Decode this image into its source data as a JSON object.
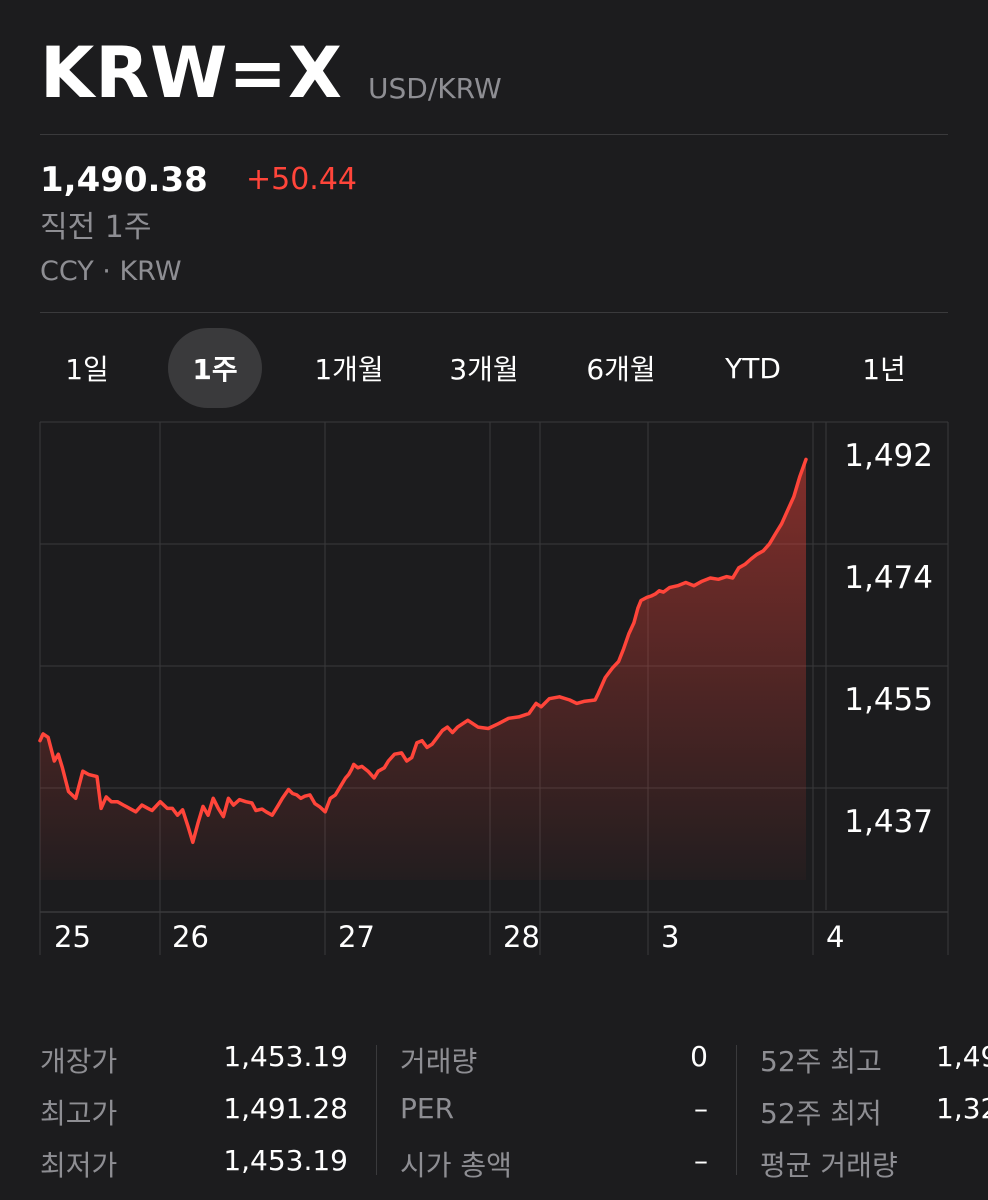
{
  "header": {
    "symbol": "KRW=X",
    "pair": "USD/KRW"
  },
  "quote": {
    "price": "1,490.38",
    "change": "+50.44",
    "period": "직전 1주",
    "exchange": "CCY · KRW"
  },
  "tabs": [
    {
      "label": "1일",
      "active": false
    },
    {
      "label": "1주",
      "active": true
    },
    {
      "label": "1개월",
      "active": false
    },
    {
      "label": "3개월",
      "active": false
    },
    {
      "label": "6개월",
      "active": false
    },
    {
      "label": "YTD",
      "active": false
    },
    {
      "label": "1년",
      "active": false
    }
  ],
  "colors": {
    "line": "#ff453a",
    "grid": "#3a3a3c",
    "background": "#1c1c1e"
  },
  "chart_data": {
    "type": "area",
    "x_ticks": [
      {
        "label": "25",
        "t": 0
      },
      {
        "label": "26",
        "t": 1
      },
      {
        "label": "27",
        "t": 2
      },
      {
        "label": "28",
        "t": 3
      },
      {
        "label": "3",
        "t": 4
      },
      {
        "label": "4",
        "t": 5
      }
    ],
    "y_ticks": [
      1492,
      1474,
      1455,
      1437
    ],
    "y_labels": [
      "1,492",
      "1,474",
      "1,455",
      "1,437"
    ],
    "ylim": [
      1430,
      1495
    ],
    "x": [
      0,
      0.03,
      0.08,
      0.14,
      0.18,
      0.22,
      0.28,
      0.35,
      0.42,
      0.48,
      0.56,
      0.6,
      0.65,
      0.7,
      0.76,
      0.82,
      0.88,
      0.94,
      1,
      1.06,
      1.1,
      1.18,
      1.25,
      1.3,
      1.35,
      1.4,
      1.45,
      1.5,
      1.55,
      1.6,
      1.65,
      1.7,
      1.75,
      1.8,
      1.85,
      1.9,
      1.96,
      2.02,
      2.08,
      2.12,
      2.18,
      2.22,
      2.28,
      2.34,
      2.38,
      2.44,
      2.48,
      2.52,
      2.56,
      2.6,
      2.65,
      2.7,
      2.75,
      2.8,
      2.85,
      2.9,
      2.96,
      3,
      3.03,
      3.06,
      3.08,
      3.12,
      3.16,
      3.22,
      3.28,
      3.32,
      3.38,
      3.42,
      3.48,
      3.55,
      3.6,
      3.65,
      3.7,
      3.75,
      3.8,
      3.85,
      3.9,
      3.95,
      4,
      4.05,
      4.1,
      4.15,
      4.2,
      4.3,
      4.4,
      4.5,
      4.6,
      4.7,
      4.8,
      4.87,
      4.92,
      5,
      5.1,
      5.2,
      5.27,
      5.34,
      5.45,
      5.48,
      5.55,
      5.62,
      5.68,
      5.73,
      5.78,
      5.83,
      5.87,
      5.9,
      5.96,
      6,
      6.04,
      6.08,
      6.12,
      6.18,
      6.26,
      6.34,
      6.42,
      6.5,
      6.58,
      6.66,
      6.74,
      6.8,
      6.86,
      6.92,
      6.98,
      7.04,
      7.1,
      7.16,
      7.22,
      7.28,
      7.34,
      7.4,
      7.46,
      7.52
    ],
    "y": [
      1449,
      1450,
      1449.5,
      1446,
      1447,
      1445,
      1441.5,
      1440.5,
      1444.5,
      1444,
      1443.7,
      1439,
      1440.7,
      1440,
      1440,
      1439.5,
      1439,
      1438.5,
      1439.5,
      1439,
      1438.7,
      1440,
      1439,
      1439,
      1438,
      1438.8,
      1436.5,
      1434,
      1436.8,
      1439.3,
      1438,
      1440.5,
      1439,
      1437.8,
      1440.5,
      1439.5,
      1440.3,
      1440,
      1439.8,
      1438.7,
      1438.9,
      1438.5,
      1438,
      1439.5,
      1440.5,
      1441.8,
      1441.2,
      1441,
      1440.5,
      1440.8,
      1441,
      1439.7,
      1439.2,
      1438.5,
      1440.5,
      1441,
      1442.5,
      1443.5,
      1444,
      1444.8,
      1445.5,
      1445,
      1445.2,
      1444.5,
      1443.5,
      1444.5,
      1445,
      1446,
      1447,
      1447.2,
      1446,
      1446.5,
      1448.7,
      1449,
      1448,
      1448.5,
      1449.5,
      1450.5,
      1451,
      1450.2,
      1451,
      1451.5,
      1452,
      1451,
      1450.8,
      1451.5,
      1452.3,
      1452.5,
      1453,
      1454.5,
      1454,
      1455.2,
      1455.5,
      1455,
      1454.5,
      1454.8,
      1455,
      1456,
      1458.5,
      1460,
      1461,
      1463,
      1465.3,
      1467,
      1469.3,
      1470.5,
      1471,
      1471.2,
      1471.5,
      1472,
      1471.8,
      1472.5,
      1472.8,
      1473.3,
      1472.8,
      1473.5,
      1474,
      1473.8,
      1474.2,
      1474,
      1475.5,
      1476,
      1476.8,
      1477.5,
      1478,
      1479,
      1480.5,
      1482,
      1484,
      1486,
      1489,
      1491.5
    ]
  },
  "stats": [
    [
      {
        "label": "개장가",
        "value": "1,453.19"
      },
      {
        "label": "최고가",
        "value": "1,491.28"
      },
      {
        "label": "최저가",
        "value": "1,453.19"
      }
    ],
    [
      {
        "label": "거래량",
        "value": "0"
      },
      {
        "label": "PER",
        "value": "–"
      },
      {
        "label": "시가 총액",
        "value": "–"
      }
    ],
    [
      {
        "label": "52주 최고",
        "value": "1,49"
      },
      {
        "label": "52주 최저",
        "value": "1,32"
      },
      {
        "label": "평균 거래량",
        "value": ""
      }
    ]
  ]
}
